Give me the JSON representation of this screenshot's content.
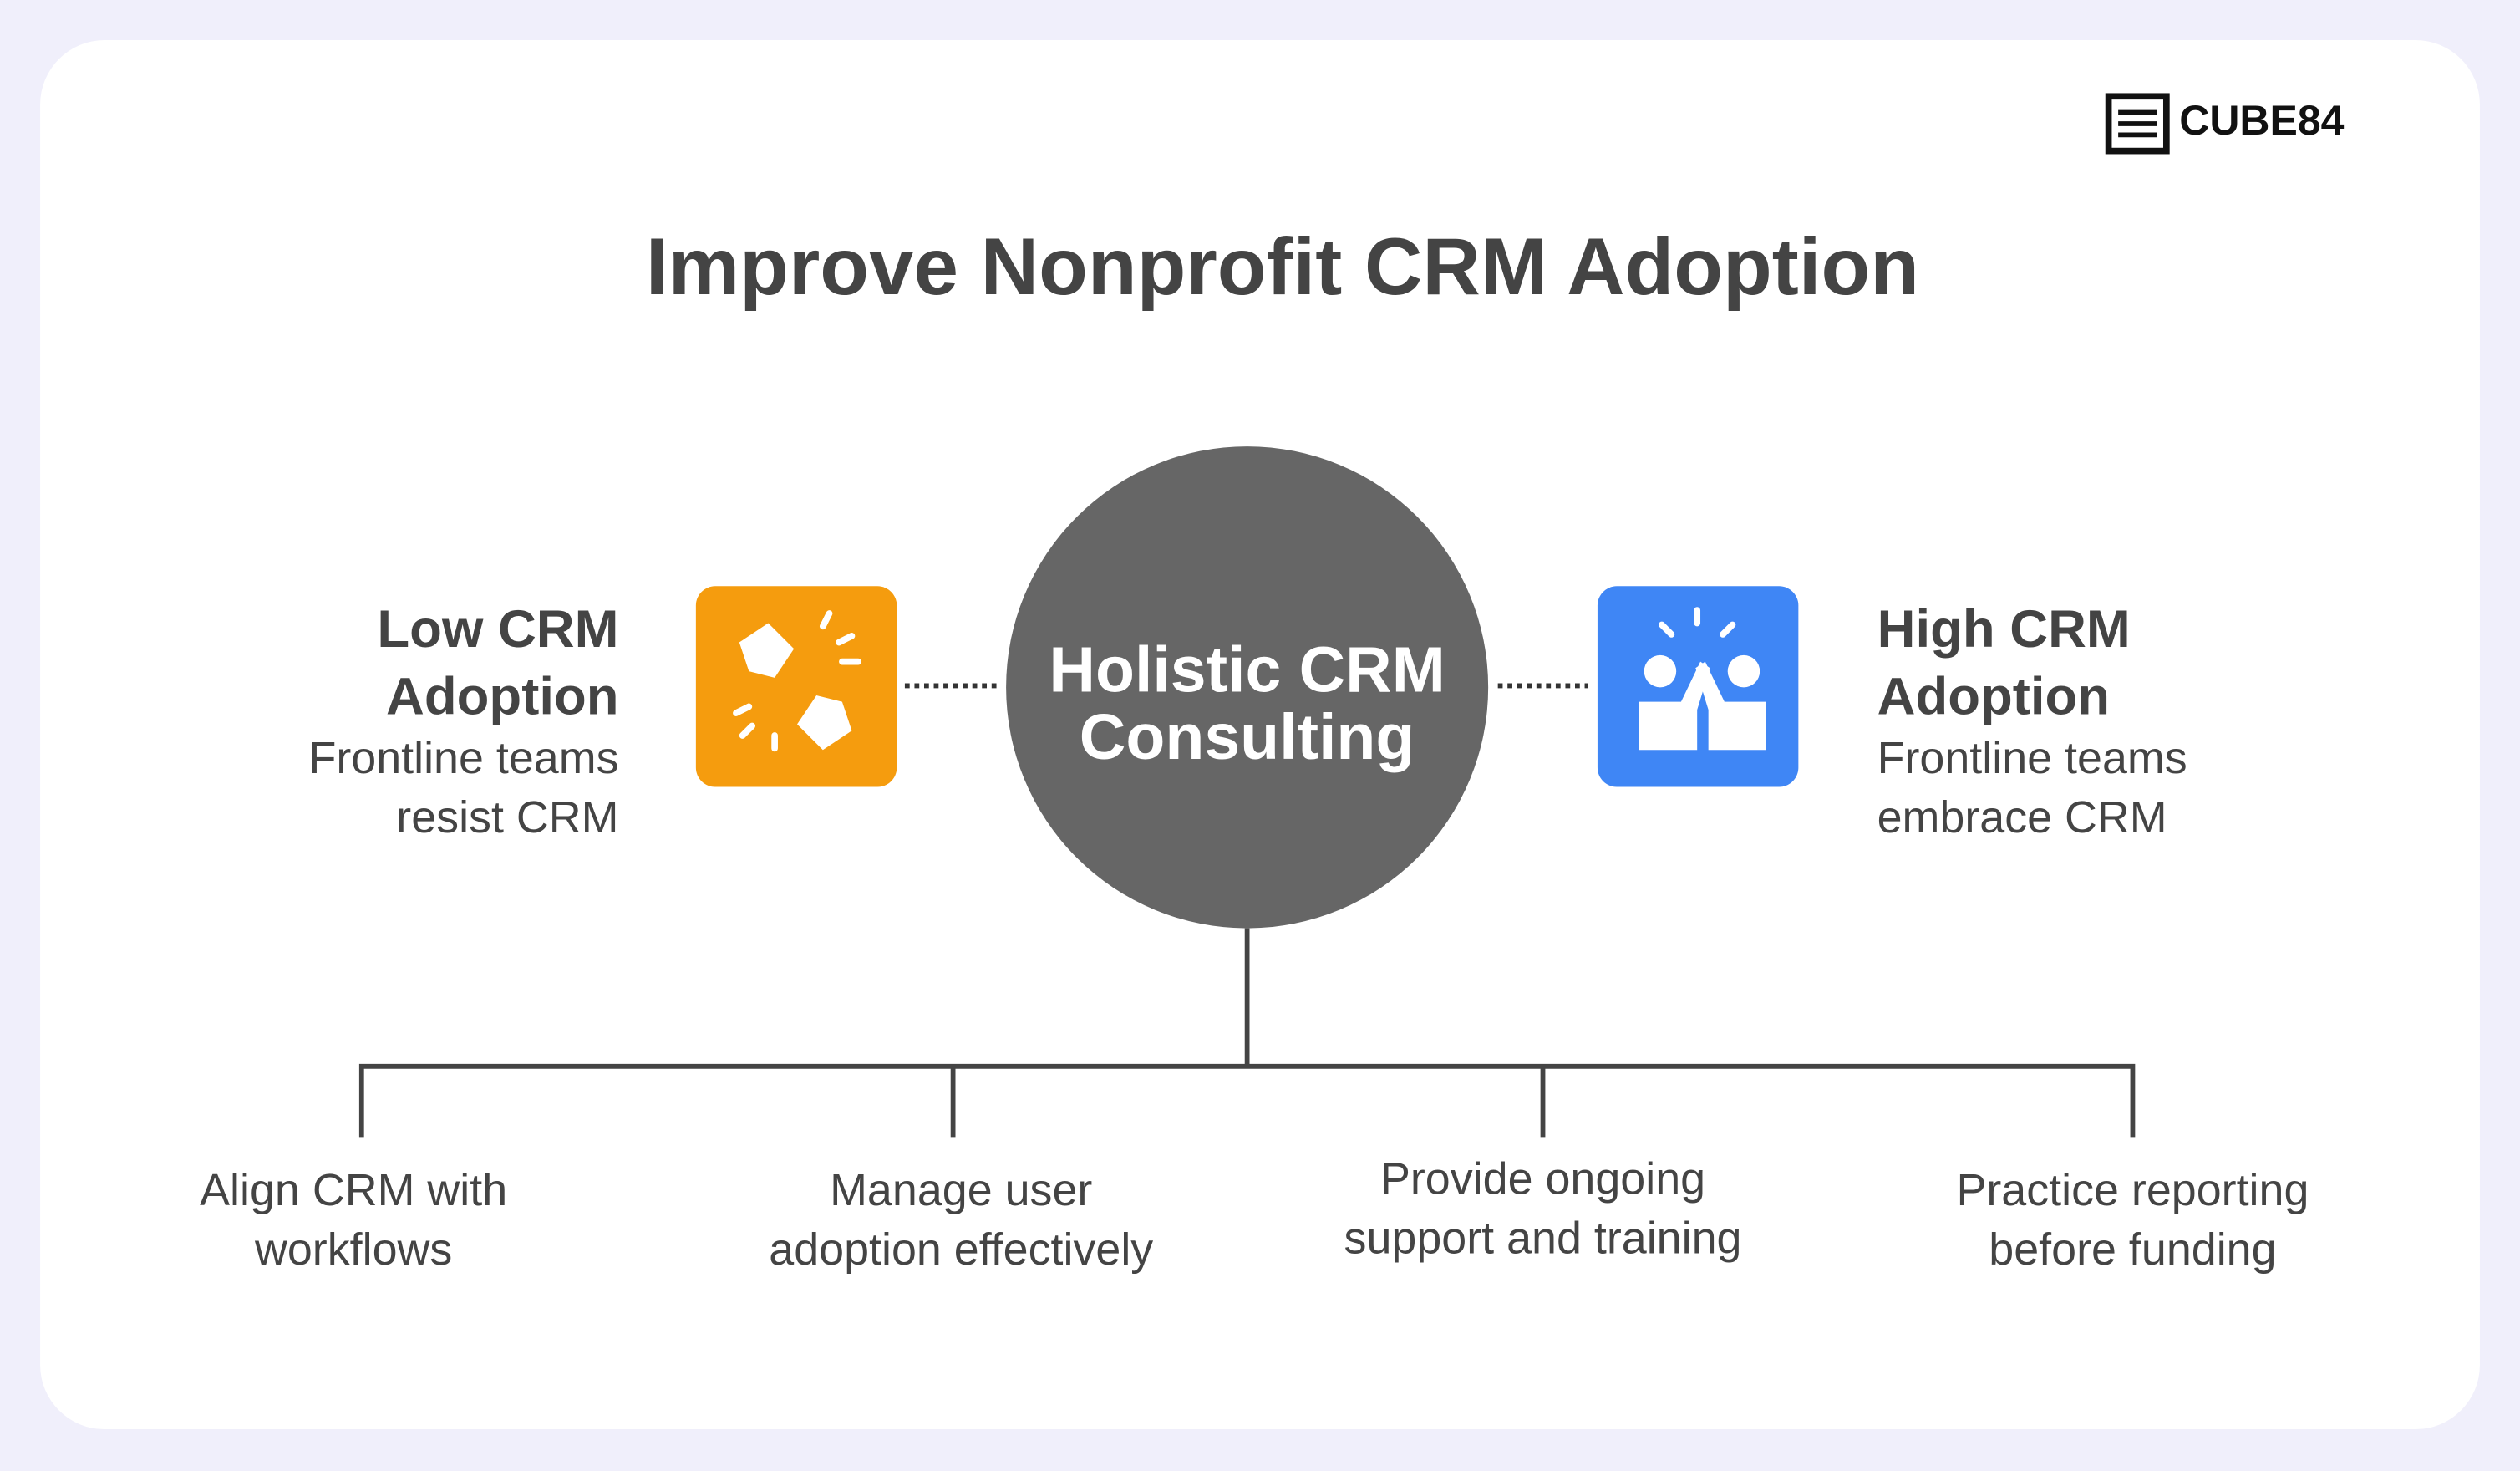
{
  "logo": {
    "text": "CUBE84"
  },
  "title": "Improve Nonprofit CRM Adoption",
  "center": {
    "lines": [
      "Holistic CRM",
      "Consulting"
    ]
  },
  "left": {
    "title": [
      "Low CRM",
      "Adoption"
    ],
    "description": [
      "Frontline teams",
      "resist CRM"
    ]
  },
  "right": {
    "title": [
      "High CRM",
      "Adoption"
    ],
    "description": [
      "Frontline teams",
      "embrace CRM"
    ]
  },
  "branches": [
    {
      "lines": [
        "Align CRM with",
        "workflows"
      ]
    },
    {
      "lines": [
        "Manage user",
        "adoption effectively"
      ]
    },
    {
      "lines": [
        "Provide ongoing",
        "support and training"
      ]
    },
    {
      "lines": [
        "Practice reporting",
        "before funding"
      ]
    }
  ]
}
